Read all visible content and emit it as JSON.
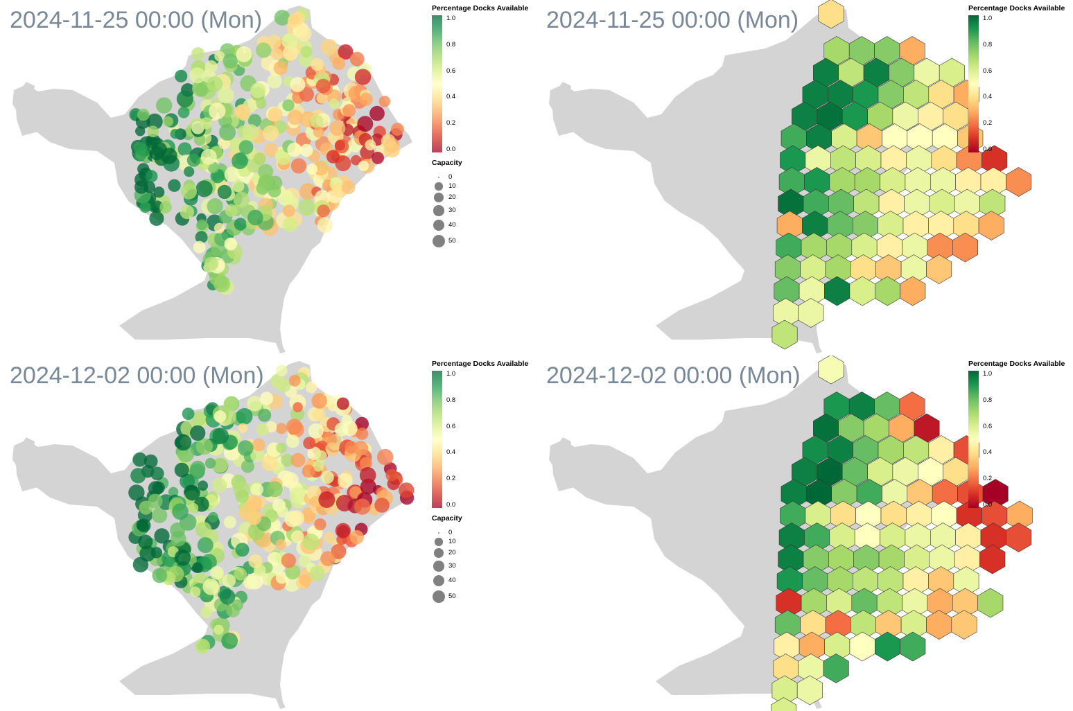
{
  "panels": [
    {
      "title": "2024-11-25 00:00 (Mon)",
      "kind": "circles",
      "seed": 11,
      "legend_title": "Percentage Docks Available",
      "capacity_title": "Capacity"
    },
    {
      "title": "2024-11-25 00:00 (Mon)",
      "kind": "hexagons",
      "seed": 12,
      "legend_title": "Percentage Docks Available"
    },
    {
      "title": "2024-12-02 00:00 (Mon)",
      "kind": "circles",
      "seed": 21,
      "legend_title": "Percentage Docks Available",
      "capacity_title": "Capacity"
    },
    {
      "title": "2024-12-02 00:00 (Mon)",
      "kind": "hexagons",
      "seed": 22,
      "legend_title": "Percentage Docks Available"
    }
  ],
  "color_ticks": [
    "1.0",
    "0.8",
    "0.6",
    "0.4",
    "0.2",
    "0.0"
  ],
  "capacity_ticks": [
    "0",
    "10",
    "20",
    "30",
    "40",
    "50"
  ],
  "colors": {
    "land": "#d4d4d4",
    "title": "#788896",
    "scale_high": "#006837",
    "scale_mid": "#ffffbf",
    "scale_low": "#a50026",
    "capacity_swatch": "#808080"
  },
  "chart_data": [
    {
      "type": "map-bubble",
      "title": "2024-11-25 00:00 (Mon)",
      "color_scale": {
        "name": "Percentage Docks Available",
        "range": [
          0.0,
          1.0
        ],
        "scheme": "RdYlGn"
      },
      "size_scale": {
        "name": "Capacity",
        "range": [
          0,
          50
        ]
      },
      "hexagon_values_north_to_south": [
        [
          0.4
        ],
        [
          0.7,
          0.75,
          0.75,
          0.3
        ],
        [
          0.95,
          0.65,
          0.95,
          0.75,
          0.55,
          0.6
        ],
        [
          0.95,
          0.95,
          0.9,
          0.75,
          0.65,
          0.4,
          0.3
        ],
        [
          0.95,
          0.98,
          0.9,
          0.7,
          0.55,
          0.45,
          0.4
        ],
        [
          0.85,
          0.95,
          0.6,
          0.35,
          0.5,
          0.5,
          0.5,
          0.35
        ],
        [
          0.9,
          0.55,
          0.65,
          0.6,
          0.45,
          0.55,
          0.4,
          0.25,
          0.1
        ],
        [
          0.85,
          0.9,
          0.7,
          0.7,
          0.6,
          0.55,
          0.55,
          0.45,
          0.45,
          0.25
        ],
        [
          0.98,
          0.85,
          0.8,
          0.65,
          0.45,
          0.55,
          0.6,
          0.55,
          0.65
        ],
        [
          0.3,
          0.95,
          0.8,
          0.75,
          0.6,
          0.45,
          0.45,
          0.4,
          0.3
        ],
        [
          0.85,
          0.7,
          0.7,
          0.6,
          0.45,
          0.55,
          0.25,
          0.25
        ],
        [
          0.75,
          0.6,
          0.7,
          0.4,
          0.35,
          0.55,
          0.35
        ],
        [
          0.8,
          0.55,
          0.95,
          0.6,
          0.7,
          0.3
        ],
        [
          0.55,
          0.55
        ],
        [
          0.65
        ]
      ]
    },
    {
      "type": "map-hexbin",
      "title": "2024-11-25 00:00 (Mon)",
      "color_scale": {
        "name": "Percentage Docks Available",
        "range": [
          0.0,
          1.0
        ],
        "scheme": "RdYlGn"
      }
    },
    {
      "type": "map-bubble",
      "title": "2024-12-02 00:00 (Mon)",
      "color_scale": {
        "name": "Percentage Docks Available",
        "range": [
          0.0,
          1.0
        ],
        "scheme": "RdYlGn"
      },
      "size_scale": {
        "name": "Capacity",
        "range": [
          0,
          50
        ]
      },
      "hexagon_values_north_to_south": [
        [
          0.52
        ],
        [
          0.9,
          0.95,
          0.8,
          0.2
        ],
        [
          0.98,
          0.75,
          0.7,
          0.3,
          0.05
        ],
        [
          0.92,
          0.95,
          0.8,
          0.7,
          0.65,
          0.45,
          0.15
        ],
        [
          0.95,
          1.0,
          0.8,
          0.6,
          0.55,
          0.5,
          0.4
        ],
        [
          0.95,
          1.0,
          0.75,
          0.85,
          0.55,
          0.35,
          0.2,
          0.15,
          0.0
        ],
        [
          0.85,
          0.6,
          0.4,
          0.5,
          0.4,
          0.45,
          0.5,
          0.1,
          0.15,
          0.3
        ],
        [
          0.95,
          0.85,
          0.6,
          0.5,
          0.6,
          0.55,
          0.55,
          0.45,
          0.1,
          0.15
        ],
        [
          0.95,
          0.75,
          0.7,
          0.75,
          0.7,
          0.6,
          0.55,
          0.45,
          0.1
        ],
        [
          0.9,
          0.8,
          0.7,
          0.65,
          0.65,
          0.45,
          0.35,
          0.55
        ],
        [
          0.1,
          0.7,
          0.6,
          0.8,
          0.65,
          0.55,
          0.3,
          0.35,
          0.7
        ],
        [
          0.8,
          0.4,
          0.2,
          0.65,
          0.35,
          0.6,
          0.3,
          0.35
        ],
        [
          0.45,
          0.3,
          0.6,
          0.5,
          0.9,
          0.85
        ],
        [
          0.4,
          0.55,
          0.85
        ],
        [
          0.6,
          0.55
        ],
        [
          0.6
        ]
      ]
    },
    {
      "type": "map-hexbin",
      "title": "2024-12-02 00:00 (Mon)",
      "color_scale": {
        "name": "Percentage Docks Available",
        "range": [
          0.0,
          1.0
        ],
        "scheme": "RdYlGn"
      }
    }
  ]
}
